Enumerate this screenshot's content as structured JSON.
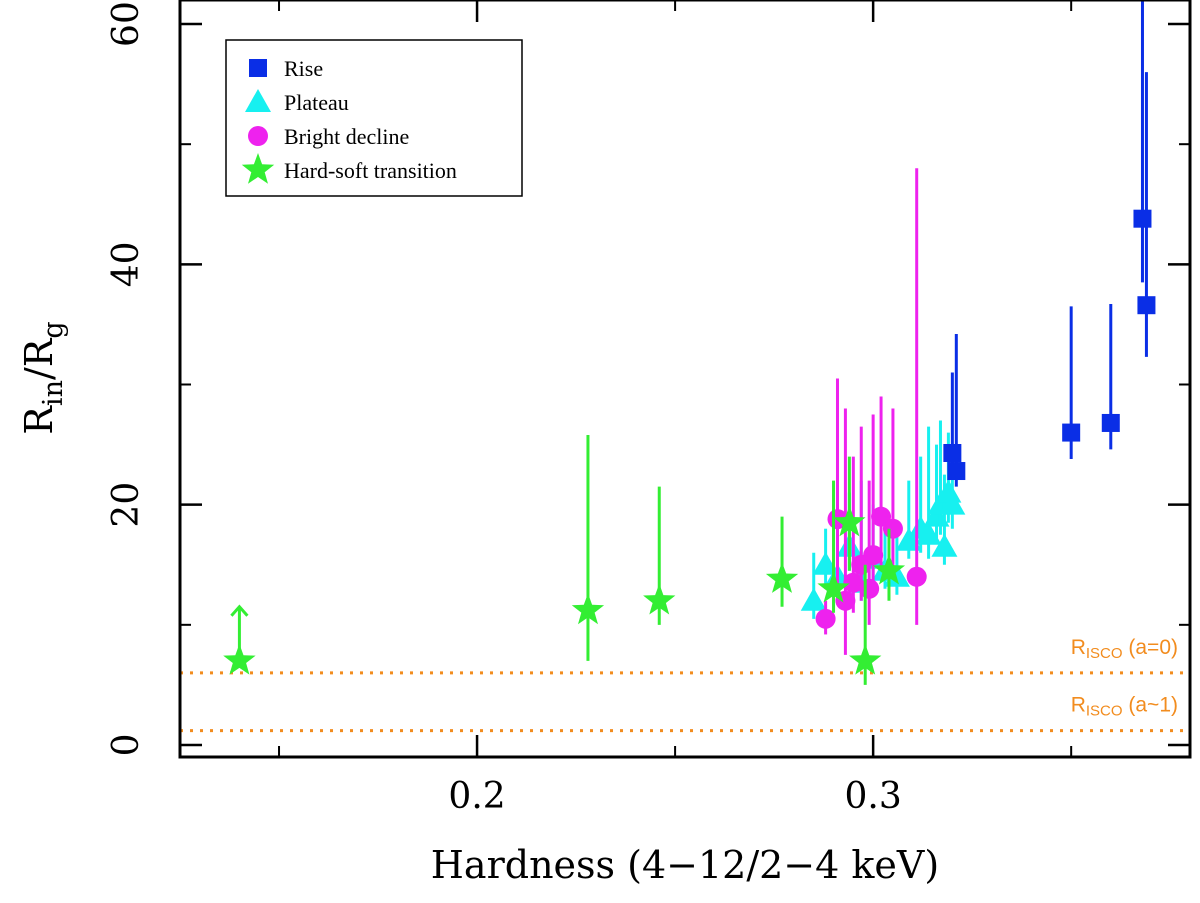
{
  "chart_data": {
    "type": "scatter",
    "xlabel": "Hardness (4−12/2−4 keV)",
    "ylabel_main": "R",
    "ylabel_sub1": "in",
    "ylabel_mid": "/R",
    "ylabel_sub2": "g",
    "xlim": [
      0.125,
      0.38
    ],
    "ylim": [
      -1,
      62
    ],
    "xticks": [
      0.2,
      0.3
    ],
    "xtick_labels": [
      "0.2",
      "0.3"
    ],
    "yticks": [
      0,
      20,
      40,
      60
    ],
    "ytick_labels": [
      "0",
      "20",
      "40",
      "60"
    ],
    "legend_position": "top-left",
    "series": [
      {
        "name": "Rise",
        "marker": "square",
        "color": "#0a2ee6",
        "points": [
          {
            "x": 0.32,
            "y": 24.3,
            "lo": 22.5,
            "hi": 31.0
          },
          {
            "x": 0.321,
            "y": 22.8,
            "lo": 21.5,
            "hi": 34.2
          },
          {
            "x": 0.35,
            "y": 26.0,
            "lo": 23.8,
            "hi": 36.5
          },
          {
            "x": 0.36,
            "y": 26.8,
            "lo": 24.6,
            "hi": 36.7
          },
          {
            "x": 0.368,
            "y": 43.8,
            "lo": 38.5,
            "hi": 62.0
          },
          {
            "x": 0.369,
            "y": 36.6,
            "lo": 32.3,
            "hi": 56.0
          }
        ]
      },
      {
        "name": "Plateau",
        "marker": "triangle",
        "color": "#17f0f0",
        "points": [
          {
            "x": 0.285,
            "y": 12.0,
            "lo": 10.5,
            "hi": 16.0
          },
          {
            "x": 0.288,
            "y": 15.0,
            "lo": 13.0,
            "hi": 18.0
          },
          {
            "x": 0.291,
            "y": 14.0,
            "lo": 12.5,
            "hi": 20.0
          },
          {
            "x": 0.294,
            "y": 16.5,
            "lo": 14.5,
            "hi": 21.0
          },
          {
            "x": 0.297,
            "y": 13.5,
            "lo": 12.0,
            "hi": 22.0
          },
          {
            "x": 0.3,
            "y": 15.5,
            "lo": 13.5,
            "hi": 20.0
          },
          {
            "x": 0.303,
            "y": 14.5,
            "lo": 13.0,
            "hi": 19.0
          },
          {
            "x": 0.306,
            "y": 14.0,
            "lo": 12.5,
            "hi": 18.0
          },
          {
            "x": 0.309,
            "y": 17.0,
            "lo": 15.5,
            "hi": 22.0
          },
          {
            "x": 0.312,
            "y": 18.0,
            "lo": 16.0,
            "hi": 24.0
          },
          {
            "x": 0.314,
            "y": 17.5,
            "lo": 15.5,
            "hi": 26.5
          },
          {
            "x": 0.316,
            "y": 19.0,
            "lo": 17.0,
            "hi": 25.0
          },
          {
            "x": 0.317,
            "y": 20.0,
            "lo": 17.5,
            "hi": 27.0
          },
          {
            "x": 0.318,
            "y": 16.5,
            "lo": 15.0,
            "hi": 22.5
          },
          {
            "x": 0.319,
            "y": 21.0,
            "lo": 18.5,
            "hi": 26.0
          },
          {
            "x": 0.32,
            "y": 20.0,
            "lo": 18.0,
            "hi": 25.0
          }
        ]
      },
      {
        "name": "Bright decline",
        "marker": "circle",
        "color": "#ee22ee",
        "points": [
          {
            "x": 0.288,
            "y": 10.5,
            "lo": 9.2,
            "hi": 12.0
          },
          {
            "x": 0.291,
            "y": 18.8,
            "lo": 13.0,
            "hi": 30.5
          },
          {
            "x": 0.293,
            "y": 12.0,
            "lo": 7.5,
            "hi": 28.0
          },
          {
            "x": 0.295,
            "y": 13.5,
            "lo": 11.0,
            "hi": 24.0
          },
          {
            "x": 0.297,
            "y": 15.0,
            "lo": 12.0,
            "hi": 26.5
          },
          {
            "x": 0.299,
            "y": 13.0,
            "lo": 10.0,
            "hi": 22.0
          },
          {
            "x": 0.3,
            "y": 15.8,
            "lo": 12.5,
            "hi": 27.5
          },
          {
            "x": 0.302,
            "y": 19.0,
            "lo": 14.5,
            "hi": 29.0
          },
          {
            "x": 0.305,
            "y": 18.0,
            "lo": 14.0,
            "hi": 28.0
          },
          {
            "x": 0.311,
            "y": 14.0,
            "lo": 10.0,
            "hi": 48.0
          }
        ]
      },
      {
        "name": "Hard-soft transition",
        "marker": "star",
        "color": "#33ee33",
        "points": [
          {
            "x": 0.14,
            "y": 7.0,
            "lo": 7.0,
            "hi": 11.5,
            "lower_limit": true
          },
          {
            "x": 0.228,
            "y": 11.2,
            "lo": 7.0,
            "hi": 25.8
          },
          {
            "x": 0.246,
            "y": 12.0,
            "lo": 10.0,
            "hi": 21.5
          },
          {
            "x": 0.277,
            "y": 13.8,
            "lo": 11.5,
            "hi": 19.0
          },
          {
            "x": 0.29,
            "y": 13.0,
            "lo": 11.0,
            "hi": 22.0
          },
          {
            "x": 0.294,
            "y": 18.5,
            "lo": 14.5,
            "hi": 24.0
          },
          {
            "x": 0.298,
            "y": 7.0,
            "lo": 5.0,
            "hi": 15.0
          },
          {
            "x": 0.304,
            "y": 14.5,
            "lo": 12.0,
            "hi": 18.0
          }
        ]
      }
    ],
    "reference_lines": [
      {
        "y": 6,
        "label_main": "R",
        "label_sub": "ISCO",
        "label_tail": " (a=0)",
        "color": "#f28c1e"
      },
      {
        "y": 1.2,
        "label_main": "R",
        "label_sub": "ISCO",
        "label_tail": " (a~1)",
        "color": "#f28c1e"
      }
    ]
  }
}
